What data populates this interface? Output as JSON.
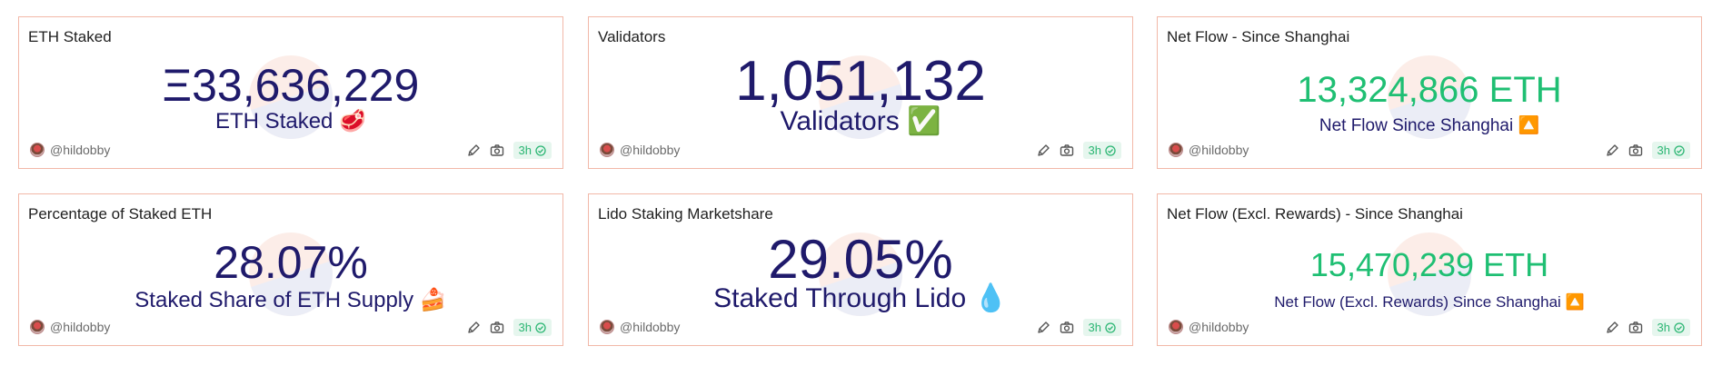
{
  "cards": [
    {
      "title": "ETH Staked",
      "value": "Ξ33,636,229",
      "subtitle": "ETH Staked",
      "emoji": "🥩",
      "author": "@hildobby",
      "age": "3h"
    },
    {
      "title": "Validators",
      "value": "1,051,132",
      "subtitle": "Validators",
      "emoji": "✅",
      "author": "@hildobby",
      "age": "3h"
    },
    {
      "title": "Net Flow - Since Shanghai",
      "value": "13,324,866 ETH",
      "subtitle": "Net Flow Since Shanghai",
      "emoji": "🔼",
      "author": "@hildobby",
      "age": "3h"
    },
    {
      "title": "Percentage of Staked ETH",
      "value": "28.07%",
      "subtitle": "Staked Share of ETH Supply",
      "emoji": "🍰",
      "author": "@hildobby",
      "age": "3h"
    },
    {
      "title": "Lido Staking Marketshare",
      "value": "29.05%",
      "subtitle": "Staked Through Lido",
      "emoji": "💧",
      "author": "@hildobby",
      "age": "3h"
    },
    {
      "title": "Net Flow (Excl. Rewards) - Since Shanghai",
      "value": "15,470,239 ETH",
      "subtitle": "Net Flow (Excl. Rewards) Since Shanghai",
      "emoji": "🔼",
      "author": "@hildobby",
      "age": "3h"
    }
  ],
  "colors": {
    "value_dark": "#1f1a6b",
    "value_green": "#1fbf73",
    "card_border": "#f2b8a8",
    "badge_bg": "#e6f6ee",
    "badge_text": "#2bb673"
  },
  "icons": {
    "edit": "pencil-icon",
    "screenshot": "camera-icon",
    "status": "check-circle-icon"
  }
}
